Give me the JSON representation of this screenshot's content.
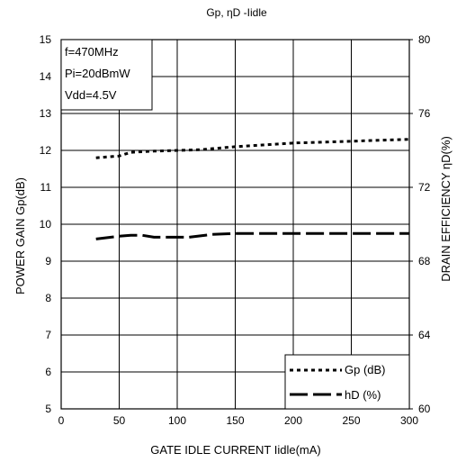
{
  "chart_data": {
    "type": "line",
    "title": "Gp, ηD -Iidle",
    "xlabel": "GATE IDLE CURRENT Iidle(mA)",
    "ylabel_left": "POWER GAIN Gp(dB)",
    "ylabel_right": "DRAIN EFFICIENCY ηD(%)",
    "xlim": [
      0,
      300
    ],
    "ylim_left": [
      5,
      15
    ],
    "ylim_right": [
      60,
      80
    ],
    "x_ticks": [
      "0",
      "50",
      "100",
      "150",
      "200",
      "250",
      "300"
    ],
    "y_ticks_left": [
      "5",
      "6",
      "7",
      "8",
      "9",
      "10",
      "11",
      "12",
      "13",
      "14",
      "15"
    ],
    "y_ticks_right": [
      "60",
      "64",
      "68",
      "72",
      "76",
      "80"
    ],
    "grid": true,
    "legend_position": "bottom-right",
    "conditions": [
      "f=470MHz",
      "Pi=20dBmW",
      "Vdd=4.5V"
    ],
    "series": [
      {
        "name": "Gp (dB)",
        "axis": "left",
        "style": "dotted",
        "color": "#000000",
        "x": [
          30,
          50,
          60,
          80,
          100,
          120,
          150,
          200,
          250,
          300
        ],
        "y": [
          11.8,
          11.85,
          11.95,
          11.98,
          12.0,
          12.02,
          12.1,
          12.2,
          12.25,
          12.3
        ]
      },
      {
        "name": "hD (%)",
        "axis": "right",
        "style": "dashed",
        "color": "#000000",
        "x": [
          30,
          50,
          60,
          70,
          80,
          100,
          110,
          130,
          150,
          200,
          250,
          300
        ],
        "y": [
          69.2,
          69.35,
          69.4,
          69.4,
          69.3,
          69.3,
          69.3,
          69.45,
          69.5,
          69.5,
          69.5,
          69.5
        ]
      }
    ]
  }
}
